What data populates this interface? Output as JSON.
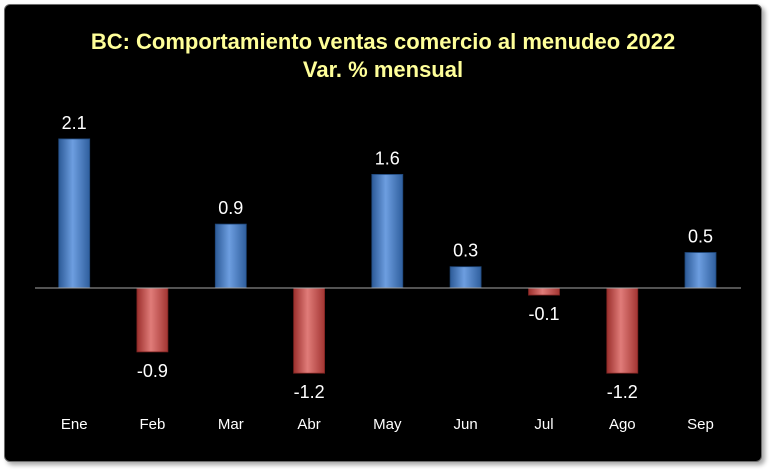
{
  "chart_data": {
    "type": "bar",
    "title": "BC: Comportamiento ventas comercio al menudeo 2022",
    "subtitle": "Var. % mensual",
    "categories": [
      "Ene",
      "Feb",
      "Mar",
      "Abr",
      "May",
      "Jun",
      "Jul",
      "Ago",
      "Sep"
    ],
    "values": [
      2.1,
      -0.9,
      0.9,
      -1.2,
      1.6,
      0.3,
      -0.1,
      -1.2,
      0.5
    ],
    "data_labels": [
      "2.1",
      "-0.9",
      "0.9",
      "-1.2",
      "1.6",
      "0.3",
      "-0.1",
      "-1.2",
      "0.5"
    ],
    "xlabel": "",
    "ylabel": "",
    "ylim": [
      -1.5,
      2.5
    ],
    "grid": false,
    "legend": "none",
    "colors": {
      "positive": "#4f81bd",
      "negative": "#c0504d",
      "background": "#000000",
      "title": "#ffff99"
    }
  }
}
